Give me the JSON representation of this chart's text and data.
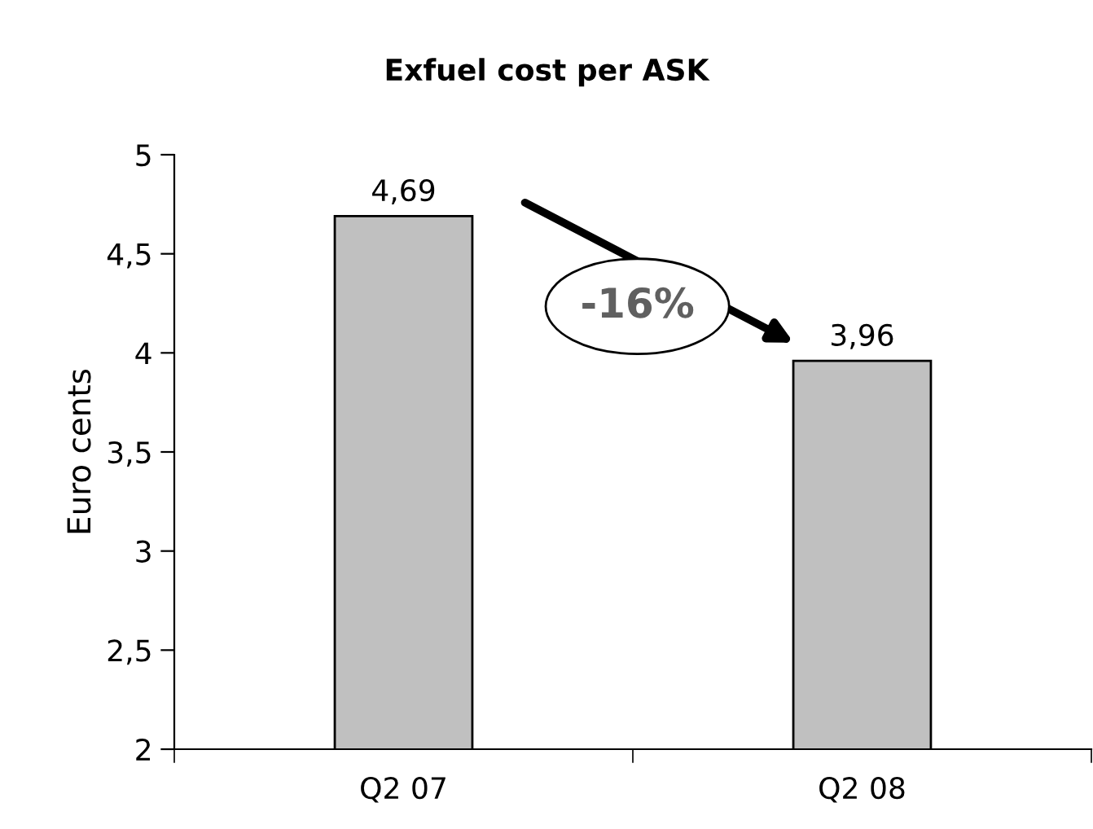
{
  "chart_data": {
    "type": "bar",
    "title": "Exfuel cost per ASK",
    "ylabel": "Euro cents",
    "categories": [
      "Q2 07",
      "Q2 08"
    ],
    "values": [
      4.69,
      3.96
    ],
    "value_labels": [
      "4,69",
      "3,96"
    ],
    "color": "#c0c0c0",
    "ylim": [
      2,
      5
    ],
    "yticks": [
      2,
      {
        "value": 2.5,
        "label": "2,5"
      },
      3,
      {
        "value": 3.5,
        "label": "3,5"
      },
      4,
      {
        "value": 4.5,
        "label": "4,5"
      },
      5
    ],
    "annotations": [
      "-16%"
    ],
    "grid": false,
    "legend": false
  }
}
